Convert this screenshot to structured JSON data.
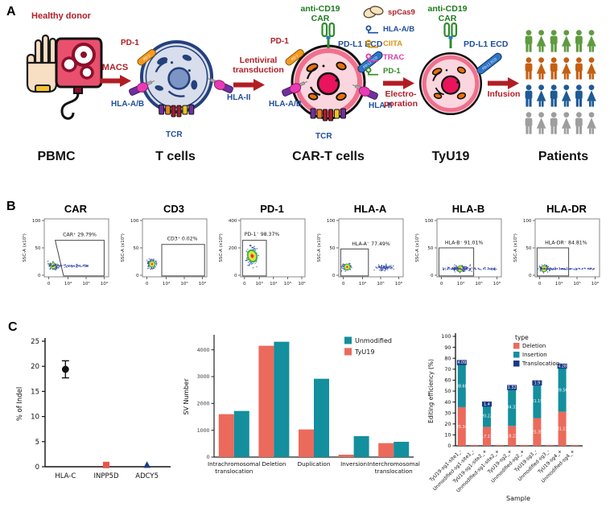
{
  "figure": {
    "label_a": "A",
    "label_b": "B",
    "label_c": "C"
  },
  "panelA": {
    "healthy_donor": "Healthy donor",
    "stage_pbmc": "PBMC",
    "stage_tcells": "T cells",
    "stage_cart": "CAR-T cells",
    "stage_tyu19": "TyU19",
    "stage_patients": "Patients",
    "arrow_macs": "MACS",
    "arrow_lenti_1": "Lentiviral",
    "arrow_lenti_2": "transduction",
    "arrow_electro_1": "Electro-",
    "arrow_electro_2": "poration",
    "arrow_infusion": "Infusion",
    "pd1": "PD-1",
    "hla_ab": "HLA-A/B",
    "hla_ii": "HLA-II",
    "tcr": "TCR",
    "anti_cd19": "anti-CD19",
    "car": "CAR",
    "pdl1_ecd": "PD-L1 ECD",
    "sgrna": [
      {
        "label": "spCas9",
        "color": "#B01E28",
        "icon": "cas9-blob"
      },
      {
        "label": "HLA-A/B",
        "color": "#1F4E9C",
        "icon": "sgrna-squiggle"
      },
      {
        "label": "CIITA",
        "color": "#D9950F",
        "icon": "sgrna-squiggle"
      },
      {
        "label": "TRAC",
        "color": "#D63FA8",
        "icon": "sgrna-squiggle"
      },
      {
        "label": "PD-1",
        "color": "#2E8B22",
        "icon": "sgrna-squiggle"
      }
    ],
    "patient_row_colors": [
      "#5F9B3F",
      "#C55F11",
      "#1E5A96",
      "#9E9E9E"
    ]
  },
  "panelB": {
    "plots": [
      {
        "title": "CAR",
        "gate": "CAR⁺ 29.79%",
        "ylabel": "SSC-A (x10⁵)",
        "yticks": [
          "0",
          "50",
          "100"
        ],
        "xticks": [
          "0",
          "10⁴",
          "10⁵",
          "10⁶"
        ]
      },
      {
        "title": "CD3",
        "gate": "CD3⁺ 0.02%",
        "ylabel": "SSC-A (x10⁵)",
        "yticks": [
          "0",
          "50",
          "100"
        ],
        "xticks": [
          "0",
          "10⁴",
          "10⁵",
          "10⁶"
        ]
      },
      {
        "title": "PD-1",
        "gate": "PD-1⁻ 98.37%",
        "ylabel": "SSC-A (x10⁴)",
        "yticks": [
          "0",
          "200",
          "400"
        ],
        "xticks": [
          "0",
          "10³",
          "10⁴",
          "10⁵",
          "10⁶"
        ]
      },
      {
        "title": "HLA-A",
        "gate": "HLA-A⁻ 77.49%",
        "ylabel": "SSC-A (x10⁵)",
        "yticks": [
          "0",
          "50",
          "100"
        ],
        "xticks": [
          "0",
          "10⁴",
          "10⁵",
          "10⁶"
        ]
      },
      {
        "title": "HLA-B",
        "gate": "HLA-B⁻ 91.01%",
        "ylabel": "SSC-A (x10⁵)",
        "yticks": [
          "0",
          "50",
          "100"
        ],
        "xticks": [
          "0",
          "10⁴",
          "10⁵",
          "10⁶"
        ]
      },
      {
        "title": "HLA-DR",
        "gate": "HLA-DR⁻ 84.81%",
        "ylabel": "SSC-A (x10⁵)",
        "yticks": [
          "0",
          "50",
          "100"
        ],
        "xticks": [
          "0",
          "10⁴",
          "10⁵",
          "10⁶"
        ]
      }
    ]
  },
  "chart_data": [
    {
      "type": "scatter",
      "ylabel": "% of Indel",
      "ylim": [
        0,
        25
      ],
      "yticks": [
        0,
        5,
        10,
        15,
        20,
        25
      ],
      "categories": [
        "HLA-C",
        "INPP5D",
        "ADCY5"
      ],
      "points": [
        {
          "label": "HLA-C",
          "value": 19.4,
          "error": 1.7,
          "marker": "circle",
          "color": "#111111"
        },
        {
          "label": "INPP5D",
          "value": 0.35,
          "error": 0,
          "marker": "square",
          "color": "#E8554B"
        },
        {
          "label": "ADCY5",
          "value": 0.35,
          "error": 0,
          "marker": "triangle",
          "color": "#1A3A85"
        }
      ]
    },
    {
      "type": "bar",
      "ylabel": "SV Number",
      "ylim": [
        0,
        4500
      ],
      "yticks": [
        0,
        1000,
        2000,
        3000,
        4000
      ],
      "categories": [
        [
          "Intrachromosomal",
          "translocation"
        ],
        [
          "Deletion"
        ],
        [
          "Duplication"
        ],
        [
          "Inversion"
        ],
        [
          "Interchromosomal",
          "translocation"
        ]
      ],
      "series": [
        {
          "name": "TyU19",
          "color": "#EC6A5C",
          "values": [
            1600,
            4150,
            1030,
            90,
            520
          ]
        },
        {
          "name": "Unmodified",
          "color": "#148F9D",
          "values": [
            1720,
            4300,
            2920,
            780,
            570
          ]
        }
      ],
      "legend_order": [
        "Unmodified",
        "TyU19"
      ]
    },
    {
      "type": "stacked-bar",
      "ylabel": "Editing efficiency (%)",
      "xlabel": "Sample",
      "legend_title": "type",
      "ylim": [
        0,
        100
      ],
      "yticks": [
        0,
        10,
        20,
        30,
        40,
        50,
        60,
        70,
        80,
        90,
        100
      ],
      "categories": [
        "TyU19-sg1-site1_-",
        "Unmodified-sg1-site1_-",
        "TyU19-sg1-site2_+",
        "Unmodified-sg1-site2_+",
        "TyU19-sg2_+",
        "Unmodified-sg2_+",
        "TyU19-sg3_-",
        "Unmodified-sg3_-",
        "TyU19-sg4_+",
        "Unmodified-sg4_+"
      ],
      "series": [
        {
          "name": "Deletion",
          "color": "#EC6A5C",
          "values": [
            35.34,
            0.8,
            17.17,
            0.8,
            18.22,
            0.8,
            25.35,
            0.8,
            31.11,
            0.8
          ],
          "labels": [
            "35.34",
            "",
            "17.17",
            "",
            "18.22",
            "",
            "25.35",
            "",
            "31.11",
            ""
          ]
        },
        {
          "name": "Insertion",
          "color": "#148F9D",
          "values": [
            38.68,
            0,
            20.22,
            0,
            34.33,
            0,
            31.19,
            0,
            39.56,
            0
          ],
          "labels": [
            "38.68",
            "",
            "20.22",
            "",
            "34.33",
            "",
            "31.19",
            "",
            "39.56",
            ""
          ]
        },
        {
          "name": "Translocation",
          "color": "#1A3A85",
          "values": [
            4.09,
            0,
            1.4,
            0,
            1.32,
            0,
            1.9,
            0,
            4.28,
            0
          ],
          "labels": [
            "4.09",
            "",
            "1.4",
            "",
            "1.32",
            "",
            "1.9",
            "",
            "4.28",
            ""
          ]
        }
      ]
    }
  ]
}
